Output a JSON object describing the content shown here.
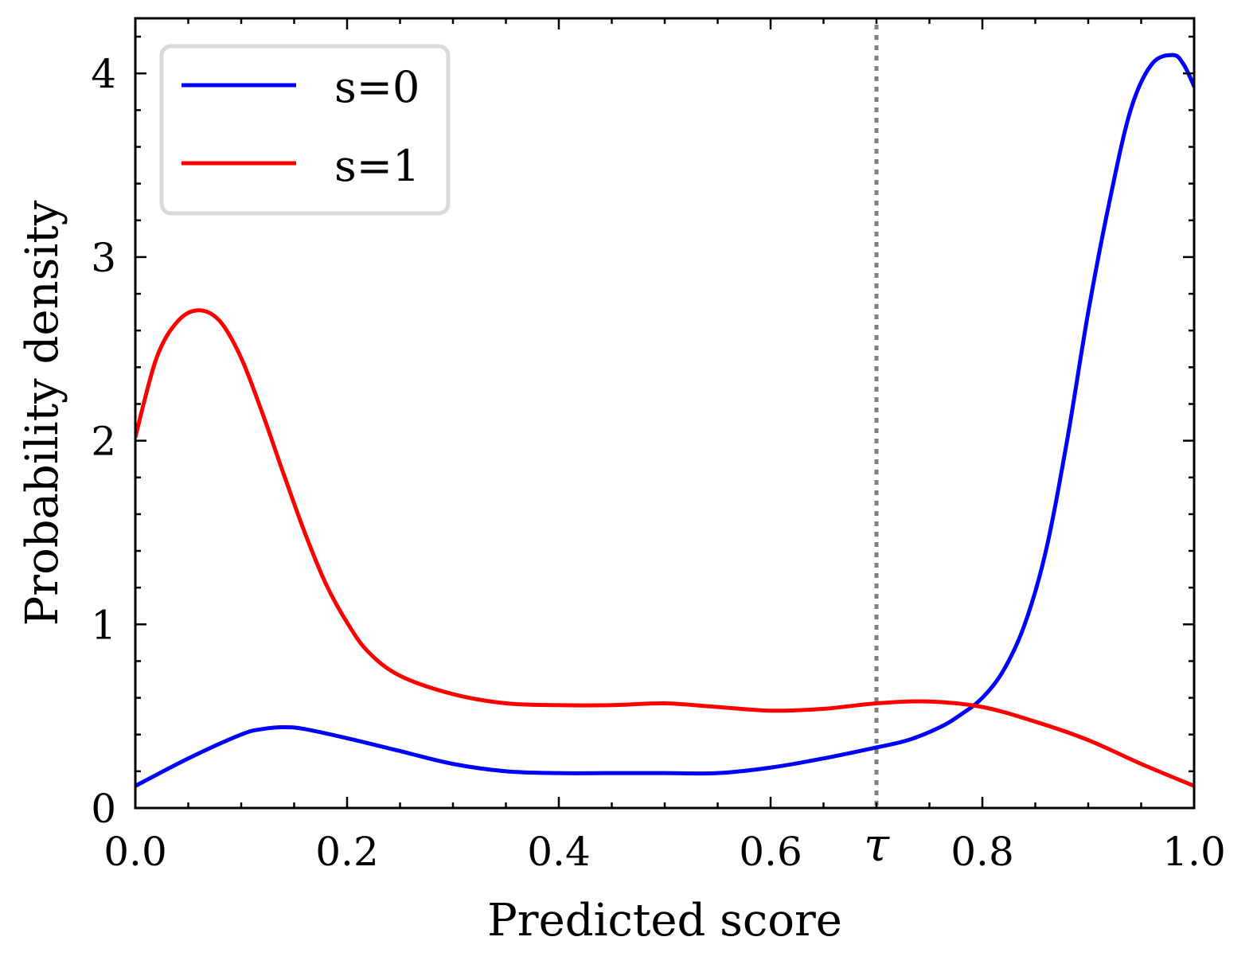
{
  "chart_data": {
    "type": "line",
    "xlabel": "Predicted score",
    "ylabel": "Probability density",
    "xlim": [
      0.0,
      1.0
    ],
    "ylim": [
      0,
      4.3
    ],
    "xticks": [
      {
        "value": 0.0,
        "label": "0.0"
      },
      {
        "value": 0.2,
        "label": "0.2"
      },
      {
        "value": 0.4,
        "label": "0.4"
      },
      {
        "value": 0.6,
        "label": "0.6"
      },
      {
        "value": 0.8,
        "label": "0.8"
      },
      {
        "value": 1.0,
        "label": "1.0"
      }
    ],
    "yticks": [
      {
        "value": 0,
        "label": "0"
      },
      {
        "value": 1,
        "label": "1"
      },
      {
        "value": 2,
        "label": "2"
      },
      {
        "value": 3,
        "label": "3"
      },
      {
        "value": 4,
        "label": "4"
      }
    ],
    "grid": false,
    "legend_position": "top-left",
    "threshold": {
      "value": 0.7,
      "label": "τ",
      "color": "#808080",
      "style": "dotted"
    },
    "series": [
      {
        "name": "s=0",
        "color": "#0000ff",
        "x": [
          0.0,
          0.05,
          0.1,
          0.12,
          0.14,
          0.16,
          0.2,
          0.25,
          0.3,
          0.35,
          0.4,
          0.45,
          0.5,
          0.55,
          0.6,
          0.65,
          0.7,
          0.73,
          0.76,
          0.78,
          0.8,
          0.82,
          0.84,
          0.86,
          0.88,
          0.9,
          0.92,
          0.94,
          0.96,
          0.98,
          0.99,
          1.0
        ],
        "y": [
          0.12,
          0.27,
          0.4,
          0.43,
          0.44,
          0.43,
          0.38,
          0.31,
          0.24,
          0.2,
          0.19,
          0.19,
          0.19,
          0.19,
          0.22,
          0.27,
          0.33,
          0.37,
          0.44,
          0.51,
          0.6,
          0.75,
          1.0,
          1.4,
          2.0,
          2.7,
          3.3,
          3.8,
          4.05,
          4.1,
          4.05,
          3.93
        ]
      },
      {
        "name": "s=1",
        "color": "#ff0000",
        "x": [
          0.0,
          0.02,
          0.04,
          0.06,
          0.08,
          0.1,
          0.12,
          0.14,
          0.16,
          0.18,
          0.2,
          0.22,
          0.25,
          0.3,
          0.35,
          0.4,
          0.45,
          0.5,
          0.55,
          0.6,
          0.65,
          0.7,
          0.75,
          0.8,
          0.85,
          0.9,
          0.95,
          1.0
        ],
        "y": [
          2.02,
          2.45,
          2.65,
          2.71,
          2.65,
          2.45,
          2.15,
          1.82,
          1.5,
          1.22,
          1.01,
          0.85,
          0.72,
          0.62,
          0.57,
          0.56,
          0.56,
          0.57,
          0.55,
          0.53,
          0.54,
          0.57,
          0.58,
          0.55,
          0.47,
          0.37,
          0.24,
          0.12
        ]
      }
    ]
  }
}
